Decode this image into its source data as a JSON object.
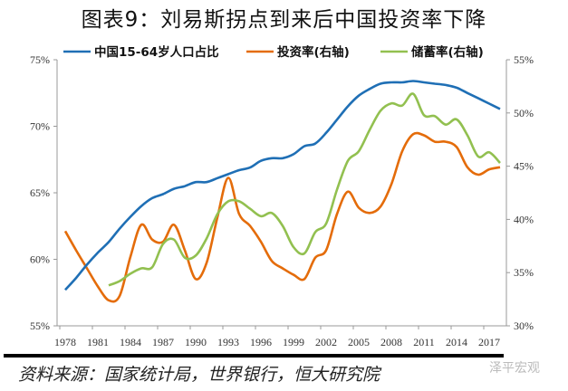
{
  "title": "图表9：刘易斯拐点到来后中国投资率下降",
  "source": "资料来源：国家统计局，世界银行，恒大研究院",
  "watermark": "泽平宏观",
  "chart_data": {
    "type": "line",
    "title": "图表9：刘易斯拐点到来后中国投资率下降",
    "x": [
      1978,
      1979,
      1980,
      1981,
      1982,
      1983,
      1984,
      1985,
      1986,
      1987,
      1988,
      1989,
      1990,
      1991,
      1992,
      1993,
      1994,
      1995,
      1996,
      1997,
      1998,
      1999,
      2000,
      2001,
      2002,
      2003,
      2004,
      2005,
      2006,
      2007,
      2008,
      2009,
      2010,
      2011,
      2012,
      2013,
      2014,
      2015,
      2016,
      2017,
      2018
    ],
    "xticks": [
      "1978",
      "1981",
      "1984",
      "1987",
      "1990",
      "1993",
      "1996",
      "1999",
      "2002",
      "2005",
      "2008",
      "2011",
      "2014",
      "2017"
    ],
    "y_left": {
      "range": [
        55,
        75
      ],
      "ticks": [
        "55%",
        "60%",
        "65%",
        "70%",
        "75%"
      ]
    },
    "y_right": {
      "range": [
        30,
        55
      ],
      "ticks": [
        "30%",
        "35%",
        "40%",
        "45%",
        "50%",
        "55%"
      ]
    },
    "grid": false,
    "legend": "top",
    "series": [
      {
        "name": "中国15-64岁人口占比",
        "axis": "left",
        "color": "#1f6fb5",
        "values": [
          57.7,
          58.6,
          59.6,
          60.5,
          61.3,
          62.3,
          63.2,
          64.0,
          64.6,
          64.9,
          65.3,
          65.5,
          65.8,
          65.8,
          66.1,
          66.4,
          66.7,
          66.9,
          67.4,
          67.6,
          67.6,
          67.9,
          68.5,
          68.7,
          69.5,
          70.5,
          71.5,
          72.3,
          72.8,
          73.2,
          73.3,
          73.3,
          73.4,
          73.3,
          73.2,
          73.1,
          72.9,
          72.5,
          72.1,
          71.7,
          71.3
        ]
      },
      {
        "name": "投资率(右轴)",
        "axis": "right",
        "color": "#e46c0a",
        "values": [
          38.9,
          37.1,
          35.4,
          33.7,
          32.4,
          32.8,
          36.5,
          39.5,
          38.1,
          37.9,
          39.5,
          37.1,
          34.4,
          35.9,
          40.2,
          43.9,
          40.5,
          39.4,
          37.9,
          36.1,
          35.4,
          34.8,
          34.4,
          36.4,
          37.1,
          40.5,
          42.6,
          41.1,
          40.6,
          41.2,
          43.3,
          46.4,
          48.0,
          47.9,
          47.3,
          47.3,
          46.8,
          44.9,
          44.2,
          44.7,
          44.9
        ]
      },
      {
        "name": "储蓄率(右轴)",
        "axis": "right",
        "color": "#92c050",
        "values": [
          null,
          null,
          null,
          null,
          33.8,
          34.2,
          34.9,
          35.4,
          35.5,
          37.7,
          38.1,
          36.4,
          36.6,
          38.2,
          40.5,
          41.7,
          41.7,
          41.0,
          40.3,
          40.6,
          39.4,
          37.4,
          36.8,
          38.8,
          39.6,
          42.8,
          45.5,
          46.4,
          48.4,
          50.2,
          50.9,
          50.7,
          51.8,
          49.8,
          49.7,
          48.9,
          49.4,
          47.9,
          45.9,
          46.3,
          45.3
        ]
      }
    ]
  }
}
